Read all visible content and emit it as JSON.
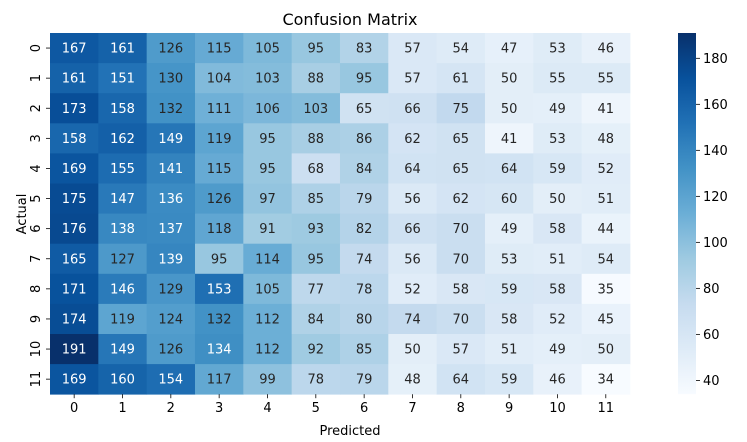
{
  "chart_data": {
    "type": "heatmap",
    "title": "Confusion Matrix",
    "xlabel": "Predicted",
    "ylabel": "Actual",
    "x_categories": [
      "0",
      "1",
      "2",
      "3",
      "4",
      "5",
      "6",
      "7",
      "8",
      "9",
      "10",
      "11"
    ],
    "y_categories": [
      "0",
      "1",
      "2",
      "3",
      "4",
      "5",
      "6",
      "7",
      "8",
      "9",
      "10",
      "11"
    ],
    "values": [
      [
        167,
        161,
        126,
        115,
        105,
        95,
        83,
        57,
        54,
        47,
        53,
        46
      ],
      [
        161,
        151,
        130,
        104,
        103,
        88,
        95,
        57,
        61,
        50,
        55,
        55
      ],
      [
        173,
        158,
        132,
        111,
        106,
        103,
        65,
        66,
        75,
        50,
        49,
        41
      ],
      [
        158,
        162,
        149,
        119,
        95,
        88,
        86,
        62,
        65,
        41,
        53,
        48
      ],
      [
        169,
        155,
        141,
        115,
        95,
        68,
        84,
        64,
        65,
        64,
        59,
        52
      ],
      [
        175,
        147,
        136,
        126,
        97,
        85,
        79,
        56,
        62,
        60,
        50,
        51
      ],
      [
        176,
        138,
        137,
        118,
        91,
        93,
        82,
        66,
        70,
        49,
        58,
        44
      ],
      [
        165,
        127,
        139,
        95,
        114,
        95,
        74,
        56,
        70,
        53,
        51,
        54
      ],
      [
        171,
        146,
        129,
        153,
        105,
        77,
        78,
        52,
        58,
        59,
        58,
        35
      ],
      [
        174,
        119,
        124,
        132,
        112,
        84,
        80,
        74,
        70,
        58,
        52,
        45
      ],
      [
        191,
        149,
        126,
        134,
        112,
        92,
        85,
        50,
        57,
        51,
        49,
        50
      ],
      [
        169,
        160,
        154,
        117,
        99,
        78,
        79,
        48,
        64,
        59,
        46,
        34
      ]
    ],
    "annotated": true,
    "colormap": "Blues",
    "vmin": 34,
    "vmax": 191,
    "colorbar_ticks": [
      40,
      60,
      80,
      100,
      120,
      140,
      160,
      180
    ]
  }
}
